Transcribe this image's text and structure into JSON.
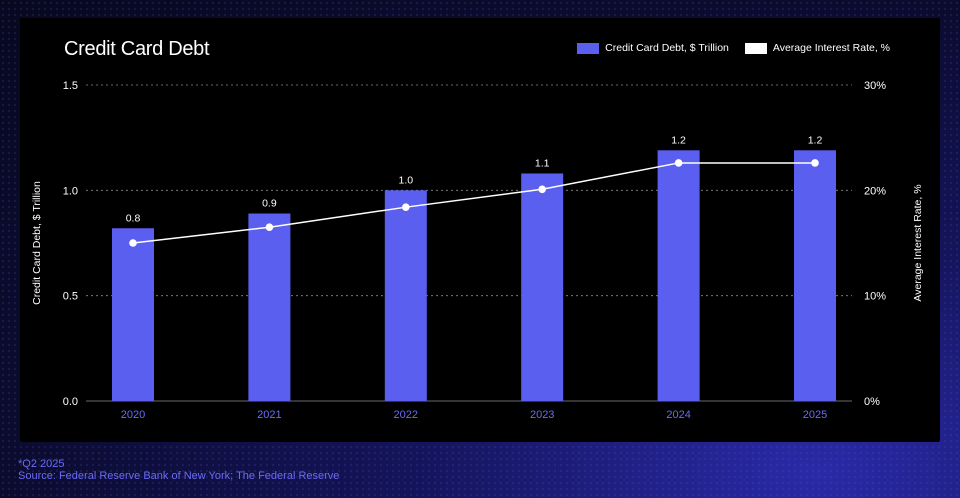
{
  "chart_data": {
    "type": "bar",
    "title": "Credit Card Debt",
    "categories": [
      "2020",
      "2021",
      "2022",
      "2023",
      "2024",
      "2025"
    ],
    "series": [
      {
        "name": "Credit Card Debt, $ Trillion",
        "type": "bar",
        "axis": "left",
        "values": [
          0.82,
          0.89,
          1.0,
          1.08,
          1.19,
          1.19
        ],
        "labels": [
          "0.8",
          "0.9",
          "1.0",
          "1.1",
          "1.2",
          "1.2"
        ],
        "color": "#5b5ff0"
      },
      {
        "name": "Average Interest Rate, %",
        "type": "line",
        "axis": "right",
        "values": [
          15.0,
          16.5,
          18.4,
          20.1,
          22.6,
          22.6
        ],
        "color": "#ffffff"
      }
    ],
    "ylabel": "Credit Card Debt, $ Trillion",
    "ylim": [
      0,
      1.5
    ],
    "yticks": [
      "0.0",
      "0.5",
      "1.0",
      "1.5"
    ],
    "y2label": "Average Interest Rate, %",
    "y2lim": [
      0,
      30
    ],
    "y2ticks": [
      "0%",
      "10%",
      "20%",
      "30%"
    ],
    "legend_position": "top-right",
    "grid": true
  },
  "footnote": {
    "line1": "*Q2 2025",
    "line2": "Source: Federal Reserve Bank of New York; The Federal Reserve"
  },
  "colors": {
    "bar": "#5b5ff0",
    "line": "#ffffff",
    "axis_label": "#6a6cf2",
    "footnote": "#6a6cf2"
  }
}
